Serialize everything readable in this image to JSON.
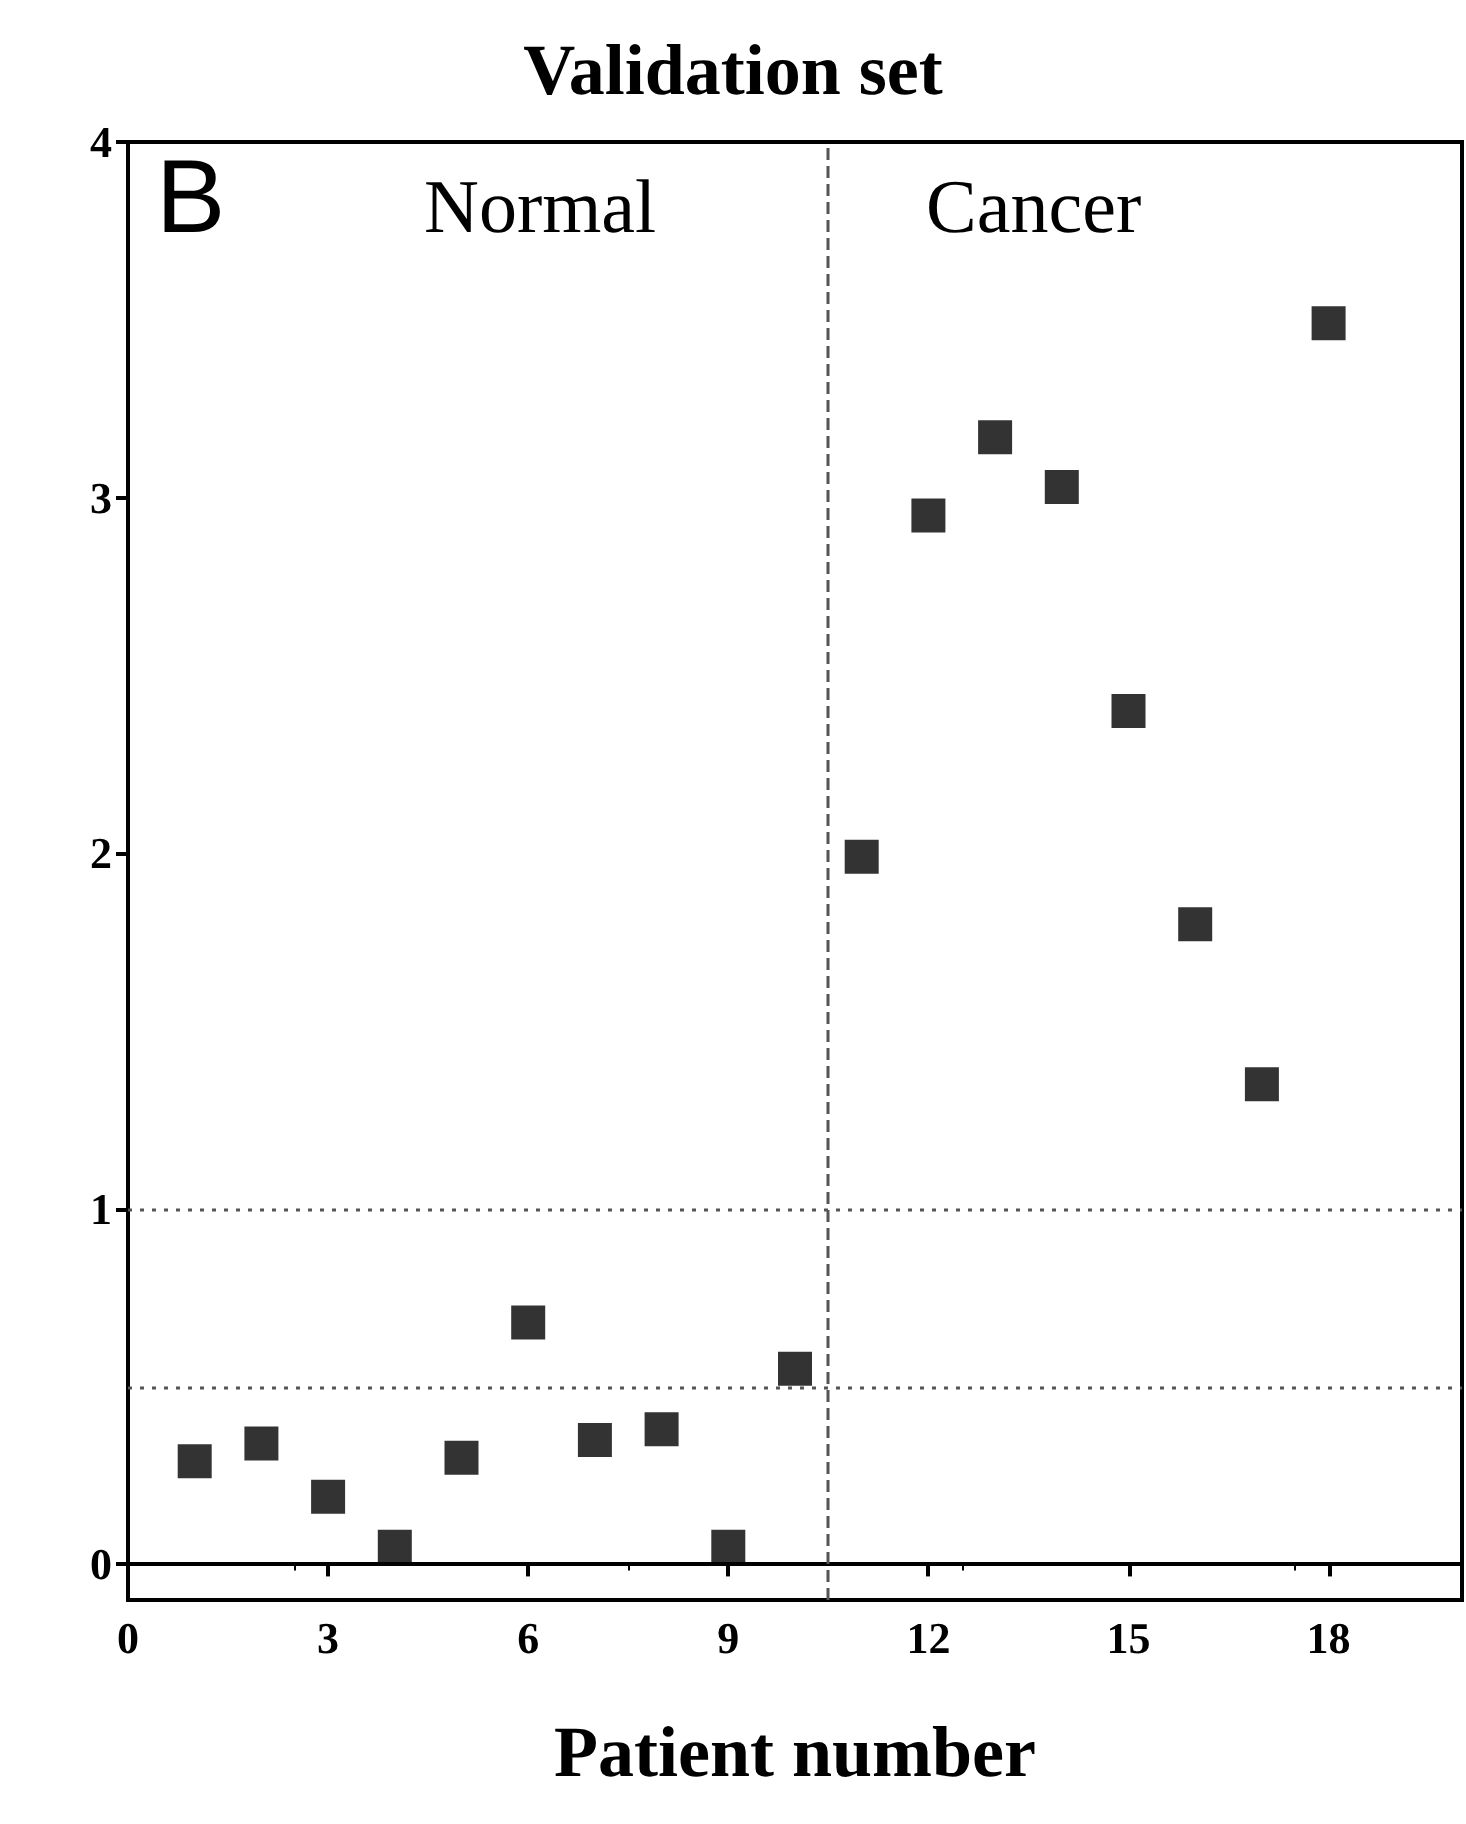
{
  "chart_data": {
    "type": "scatter",
    "title": "Validation set",
    "xlabel": "Patient number",
    "x": [
      1,
      2,
      3,
      4,
      5,
      6,
      7,
      8,
      9,
      10,
      11,
      12,
      13,
      14,
      15,
      16,
      17,
      18
    ],
    "series": [
      {
        "color": "#000000",
        "values": [
          0.29,
          0.34,
          0.19,
          0.05,
          0.3,
          0.68,
          0.35,
          0.38,
          0.05,
          0.55,
          1.99,
          2.95,
          3.17,
          3.03,
          2.4,
          1.8,
          1.35,
          3.49
        ]
      }
    ],
    "xlim": [
      0,
      20
    ],
    "xticks": [
      0,
      3,
      6,
      9,
      12,
      15,
      18
    ],
    "ylim": [
      -0.1,
      4
    ],
    "yticks": [
      0,
      1,
      2,
      3,
      4
    ],
    "marker": "square",
    "grid": false,
    "ref_lines": [
      {
        "axis": "x",
        "value": 10.5,
        "line_style": "dashed",
        "color": "#555555"
      },
      {
        "axis": "y",
        "value": 1,
        "line_style": "dotted",
        "color": "#555555"
      },
      {
        "axis": "y",
        "value": 0.5,
        "line_style": "dotted",
        "color": "#555555"
      }
    ],
    "annotations": [
      "B",
      "Normal",
      "Cancer"
    ]
  }
}
